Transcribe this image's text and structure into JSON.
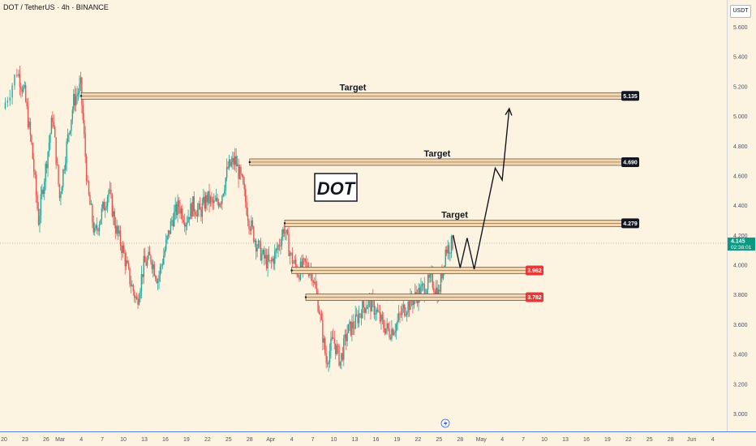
{
  "header": {
    "symbol_line": "DOT / TetherUS · 4h · BINANCE"
  },
  "quote_currency": "USDT",
  "colors": {
    "background": "#fdf3e1",
    "up": "#26a69a",
    "down": "#ef5350",
    "zone_fill": "#f3d5ae",
    "target_badge": "#131722",
    "support_badge": "#e53935",
    "price_line": "#9598a1",
    "current_badge": "#089981",
    "axis_text": "#4d5360"
  },
  "chart_data": {
    "type": "candlestick",
    "title": "DOT",
    "xlabel": "",
    "ylabel": "",
    "ylim": [
      2.92,
      5.74
    ],
    "y_ticks": [
      "3.000",
      "3.200",
      "3.400",
      "3.600",
      "3.800",
      "4.000",
      "4.200",
      "4.400",
      "4.600",
      "4.800",
      "5.000",
      "5.200",
      "5.400",
      "5.600"
    ],
    "x_ticks": [
      "20",
      "23",
      "26",
      "Mar",
      "4",
      "7",
      "10",
      "13",
      "16",
      "19",
      "22",
      "25",
      "28",
      "Apr",
      "4",
      "7",
      "10",
      "13",
      "16",
      "19",
      "22",
      "25",
      "28",
      "May",
      "4",
      "7",
      "10",
      "13",
      "16",
      "19",
      "22",
      "25",
      "28",
      "Jun",
      "4"
    ],
    "price_path": [
      {
        "date": "Feb 20",
        "price": 5.05
      },
      {
        "date": "Feb 22",
        "price": 5.3
      },
      {
        "date": "Feb 23",
        "price": 5.15
      },
      {
        "date": "Feb 24",
        "price": 4.8
      },
      {
        "date": "Feb 25",
        "price": 4.3
      },
      {
        "date": "Feb 26",
        "price": 4.65
      },
      {
        "date": "Feb 27",
        "price": 5.0
      },
      {
        "date": "Feb 28",
        "price": 4.45
      },
      {
        "date": "Mar 1",
        "price": 4.8
      },
      {
        "date": "Mar 2",
        "price": 5.1
      },
      {
        "date": "Mar 3",
        "price": 5.2
      },
      {
        "date": "Mar 4",
        "price": 4.5
      },
      {
        "date": "Mar 5",
        "price": 4.2
      },
      {
        "date": "Mar 6",
        "price": 4.35
      },
      {
        "date": "Mar 7",
        "price": 4.5
      },
      {
        "date": "Mar 8",
        "price": 4.25
      },
      {
        "date": "Mar 9",
        "price": 4.1
      },
      {
        "date": "Mar 10",
        "price": 3.9
      },
      {
        "date": "Mar 11",
        "price": 3.75
      },
      {
        "date": "Mar 12",
        "price": 4.0
      },
      {
        "date": "Mar 13",
        "price": 4.05
      },
      {
        "date": "Mar 14",
        "price": 3.9
      },
      {
        "date": "Mar 15",
        "price": 4.1
      },
      {
        "date": "Mar 16",
        "price": 4.3
      },
      {
        "date": "Mar 17",
        "price": 4.4
      },
      {
        "date": "Mar 18",
        "price": 4.3
      },
      {
        "date": "Mar 19",
        "price": 4.4
      },
      {
        "date": "Mar 20",
        "price": 4.35
      },
      {
        "date": "Mar 21",
        "price": 4.45
      },
      {
        "date": "Mar 22",
        "price": 4.4
      },
      {
        "date": "Mar 23",
        "price": 4.45
      },
      {
        "date": "Mar 24",
        "price": 4.65
      },
      {
        "date": "Mar 25",
        "price": 4.7
      },
      {
        "date": "Mar 26",
        "price": 4.55
      },
      {
        "date": "Mar 27",
        "price": 4.3
      },
      {
        "date": "Mar 28",
        "price": 4.15
      },
      {
        "date": "Mar 29",
        "price": 4.05
      },
      {
        "date": "Mar 30",
        "price": 4.0
      },
      {
        "date": "Mar 31",
        "price": 4.1
      },
      {
        "date": "Apr 1",
        "price": 4.25
      },
      {
        "date": "Apr 2",
        "price": 4.05
      },
      {
        "date": "Apr 3",
        "price": 3.95
      },
      {
        "date": "Apr 4",
        "price": 4.0
      },
      {
        "date": "Apr 5",
        "price": 3.95
      },
      {
        "date": "Apr 6",
        "price": 3.7
      },
      {
        "date": "Apr 7",
        "price": 3.35
      },
      {
        "date": "Apr 8",
        "price": 3.5
      },
      {
        "date": "Apr 9",
        "price": 3.35
      },
      {
        "date": "Apr 10",
        "price": 3.55
      },
      {
        "date": "Apr 11",
        "price": 3.6
      },
      {
        "date": "Apr 12",
        "price": 3.7
      },
      {
        "date": "Apr 13",
        "price": 3.75
      },
      {
        "date": "Apr 14",
        "price": 3.7
      },
      {
        "date": "Apr 15",
        "price": 3.6
      },
      {
        "date": "Apr 16",
        "price": 3.55
      },
      {
        "date": "Apr 17",
        "price": 3.6
      },
      {
        "date": "Apr 18",
        "price": 3.7
      },
      {
        "date": "Apr 19",
        "price": 3.75
      },
      {
        "date": "Apr 20",
        "price": 3.8
      },
      {
        "date": "Apr 21",
        "price": 3.85
      },
      {
        "date": "Apr 22",
        "price": 3.9
      },
      {
        "date": "Apr 23",
        "price": 3.8
      },
      {
        "date": "Apr 24",
        "price": 4.1
      },
      {
        "date": "Apr 25",
        "price": 4.145
      }
    ],
    "levels": [
      {
        "label": "Target",
        "value": "5.135",
        "role": "target",
        "start_date": "Mar 3"
      },
      {
        "label": "Target",
        "value": "4.690",
        "role": "target",
        "start_date": "Mar 27"
      },
      {
        "label": "Target",
        "value": "4.279",
        "role": "target",
        "start_date": "Apr 1"
      },
      {
        "label": "",
        "value": "3.962",
        "role": "support",
        "start_date": "Apr 2"
      },
      {
        "label": "",
        "value": "3.782",
        "role": "support",
        "start_date": "Apr 4"
      }
    ],
    "projection": [
      {
        "date": "Apr 25",
        "price": 4.2
      },
      {
        "date": "Apr 26",
        "price": 3.98
      },
      {
        "date": "Apr 27",
        "price": 4.18
      },
      {
        "date": "Apr 28",
        "price": 3.97
      },
      {
        "date": "May 1",
        "price": 4.65
      },
      {
        "date": "May 2",
        "price": 4.57
      },
      {
        "date": "May 3",
        "price": 5.05
      }
    ],
    "current_price": "4.145",
    "countdown": "02:38:01"
  }
}
